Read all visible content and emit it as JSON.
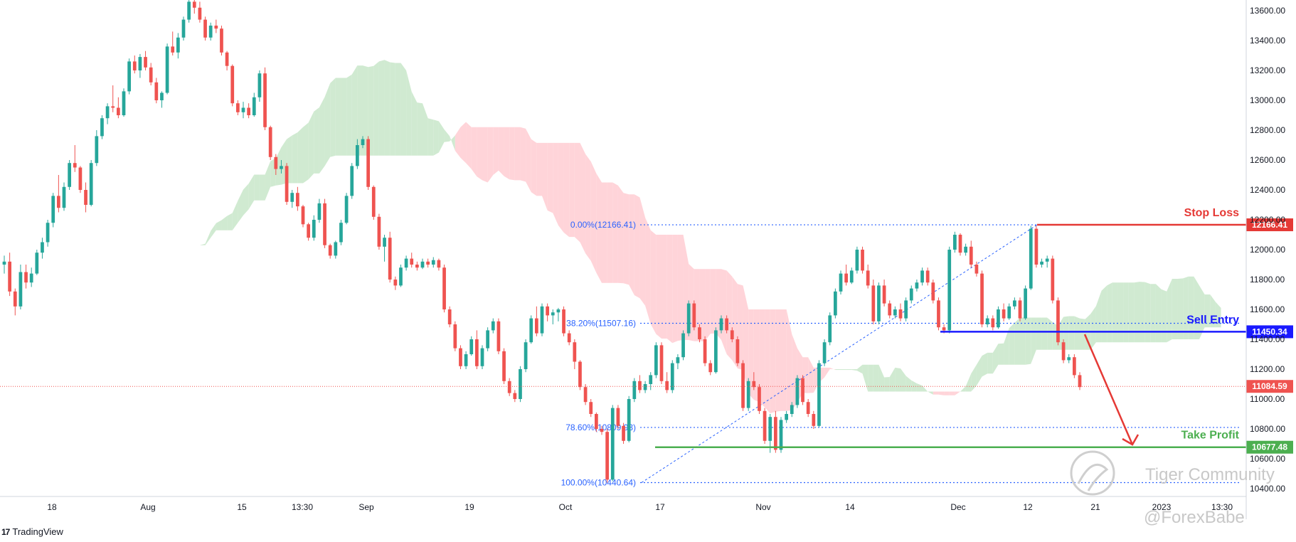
{
  "chart_data": {
    "type": "candlestick",
    "title": "",
    "y_ticks": [
      13600,
      13400,
      13200,
      13000,
      12800,
      12600,
      12400,
      12200,
      12000,
      11800,
      11600,
      11400,
      11200,
      11000,
      10800,
      10600,
      10400
    ],
    "ylim": [
      10300,
      13700
    ],
    "x_ticks": [
      "18",
      "Aug",
      "15",
      "13:30",
      "Sep",
      "19",
      "Oct",
      "17",
      "Nov",
      "14",
      "Dec",
      "12",
      "21",
      "2023",
      "13:30"
    ],
    "current_price": "11084.59",
    "levels": [
      {
        "name": "Stop Loss",
        "value": "12166.41",
        "color": "#e53935"
      },
      {
        "name": "Sell Entry",
        "value": "11450.34",
        "color": "#1a1aff"
      },
      {
        "name": "Take Profit",
        "value": "10677.48",
        "color": "#4caf50"
      }
    ],
    "fibonacci": [
      {
        "label": "0.00%(12166.41)",
        "value": 12166.41
      },
      {
        "label": "38.20%(11507.16)",
        "value": 11507.16
      },
      {
        "label": "78.60%(10809.93)",
        "value": 10809.93
      },
      {
        "label": "100.00%(10440.64)",
        "value": 10440.64
      }
    ],
    "colors": {
      "up": "#26a69a",
      "down": "#ef5350",
      "cloud_bull": "#c8e6c9",
      "cloud_bear": "#ffcdd2"
    },
    "ohlc": [
      [
        11900,
        11960,
        11840,
        11920
      ],
      [
        11920,
        11980,
        11690,
        11720
      ],
      [
        11720,
        11740,
        11560,
        11620
      ],
      [
        11620,
        11900,
        11600,
        11850
      ],
      [
        11850,
        11900,
        11740,
        11780
      ],
      [
        11780,
        11880,
        11750,
        11840
      ],
      [
        11840,
        12000,
        11830,
        11980
      ],
      [
        11980,
        12080,
        11940,
        12050
      ],
      [
        12050,
        12200,
        12020,
        12180
      ],
      [
        12180,
        12380,
        12150,
        12360
      ],
      [
        12360,
        12500,
        12250,
        12280
      ],
      [
        12280,
        12450,
        12260,
        12420
      ],
      [
        12420,
        12600,
        12400,
        12580
      ],
      [
        12580,
        12700,
        12520,
        12550
      ],
      [
        12550,
        12560,
        12380,
        12400
      ],
      [
        12400,
        12450,
        12250,
        12300
      ],
      [
        12300,
        12600,
        12290,
        12580
      ],
      [
        12580,
        12800,
        12560,
        12760
      ],
      [
        12760,
        12900,
        12740,
        12880
      ],
      [
        12880,
        12980,
        12840,
        12960
      ],
      [
        12960,
        13100,
        12920,
        12950
      ],
      [
        12950,
        13020,
        12880,
        12900
      ],
      [
        12900,
        13080,
        12890,
        13060
      ],
      [
        13060,
        13280,
        13040,
        13260
      ],
      [
        13260,
        13300,
        13180,
        13200
      ],
      [
        13200,
        13310,
        13150,
        13290
      ],
      [
        13290,
        13330,
        13200,
        13220
      ],
      [
        13220,
        13250,
        13100,
        13120
      ],
      [
        13120,
        13150,
        12980,
        13000
      ],
      [
        13000,
        13060,
        12950,
        13050
      ],
      [
        13050,
        13380,
        13040,
        13360
      ],
      [
        13360,
        13460,
        13300,
        13320
      ],
      [
        13320,
        13450,
        13280,
        13420
      ],
      [
        13420,
        13560,
        13400,
        13540
      ],
      [
        13540,
        13680,
        13520,
        13660
      ],
      [
        13660,
        13700,
        13580,
        13620
      ],
      [
        13620,
        13660,
        13520,
        13540
      ],
      [
        13540,
        13560,
        13400,
        13420
      ],
      [
        13420,
        13520,
        13400,
        13500
      ],
      [
        13500,
        13540,
        13450,
        13480
      ],
      [
        13480,
        13500,
        13300,
        13320
      ],
      [
        13320,
        13330,
        13200,
        13230
      ],
      [
        13230,
        13240,
        12960,
        12980
      ],
      [
        12980,
        13000,
        12900,
        12920
      ],
      [
        12920,
        12990,
        12880,
        12950
      ],
      [
        12950,
        12980,
        12880,
        12900
      ],
      [
        12900,
        13050,
        12890,
        13020
      ],
      [
        13020,
        13200,
        12990,
        13180
      ],
      [
        13180,
        13220,
        12800,
        12820
      ],
      [
        12820,
        12830,
        12600,
        12620
      ],
      [
        12620,
        12640,
        12500,
        12540
      ],
      [
        12540,
        12600,
        12510,
        12560
      ],
      [
        12560,
        12580,
        12300,
        12320
      ],
      [
        12320,
        12400,
        12280,
        12380
      ],
      [
        12380,
        12420,
        12260,
        12290
      ],
      [
        12290,
        12300,
        12150,
        12170
      ],
      [
        12170,
        12180,
        12060,
        12080
      ],
      [
        12080,
        12230,
        12060,
        12200
      ],
      [
        12200,
        12340,
        12180,
        12310
      ],
      [
        12310,
        12340,
        12010,
        12030
      ],
      [
        12030,
        12040,
        11940,
        11960
      ],
      [
        11960,
        12060,
        11940,
        12050
      ],
      [
        12050,
        12200,
        12030,
        12180
      ],
      [
        12180,
        12380,
        12170,
        12360
      ],
      [
        12360,
        12580,
        12340,
        12560
      ],
      [
        12560,
        12740,
        12540,
        12700
      ],
      [
        12700,
        12760,
        12680,
        12740
      ],
      [
        12740,
        12760,
        12400,
        12420
      ],
      [
        12420,
        12430,
        12200,
        12220
      ],
      [
        12220,
        12240,
        12000,
        12020
      ],
      [
        12020,
        12100,
        11920,
        12080
      ],
      [
        12080,
        12120,
        11780,
        11800
      ],
      [
        11800,
        11820,
        11730,
        11760
      ],
      [
        11760,
        11900,
        11750,
        11880
      ],
      [
        11880,
        11960,
        11860,
        11940
      ],
      [
        11940,
        11980,
        11880,
        11900
      ],
      [
        11900,
        11920,
        11860,
        11880
      ],
      [
        11880,
        11940,
        11870,
        11920
      ],
      [
        11920,
        11940,
        11880,
        11900
      ],
      [
        11900,
        11950,
        11880,
        11930
      ],
      [
        11930,
        11940,
        11860,
        11880
      ],
      [
        11880,
        11900,
        11580,
        11600
      ],
      [
        11600,
        11620,
        11480,
        11500
      ],
      [
        11500,
        11520,
        11320,
        11340
      ],
      [
        11340,
        11360,
        11200,
        11220
      ],
      [
        11220,
        11320,
        11200,
        11300
      ],
      [
        11300,
        11420,
        11290,
        11400
      ],
      [
        11400,
        11460,
        11200,
        11220
      ],
      [
        11220,
        11360,
        11200,
        11340
      ],
      [
        11340,
        11480,
        11320,
        11460
      ],
      [
        11460,
        11540,
        11440,
        11520
      ],
      [
        11520,
        11540,
        11300,
        11320
      ],
      [
        11320,
        11340,
        11100,
        11120
      ],
      [
        11120,
        11140,
        11020,
        11040
      ],
      [
        11040,
        11060,
        10980,
        11000
      ],
      [
        11000,
        11220,
        10980,
        11200
      ],
      [
        11200,
        11400,
        11180,
        11380
      ],
      [
        11380,
        11560,
        11370,
        11540
      ],
      [
        11540,
        11620,
        11420,
        11440
      ],
      [
        11440,
        11640,
        11420,
        11620
      ],
      [
        11620,
        11640,
        11520,
        11560
      ],
      [
        11560,
        11600,
        11500,
        11580
      ],
      [
        11580,
        11610,
        11520,
        11600
      ],
      [
        11600,
        11620,
        11420,
        11440
      ],
      [
        11440,
        11460,
        11360,
        11380
      ],
      [
        11380,
        11400,
        11200,
        11250
      ],
      [
        11250,
        11260,
        11060,
        11080
      ],
      [
        11080,
        11100,
        10960,
        10980
      ],
      [
        10980,
        11000,
        10880,
        10900
      ],
      [
        10900,
        10910,
        10780,
        10800
      ],
      [
        10800,
        10820,
        10760,
        10780
      ],
      [
        10780,
        10800,
        10440,
        10460
      ],
      [
        10460,
        10960,
        10450,
        10940
      ],
      [
        10940,
        10960,
        10800,
        10820
      ],
      [
        10820,
        10840,
        10700,
        10720
      ],
      [
        10720,
        11020,
        10710,
        11000
      ],
      [
        11000,
        11140,
        10980,
        11120
      ],
      [
        11120,
        11160,
        11040,
        11060
      ],
      [
        11060,
        11120,
        11040,
        11100
      ],
      [
        11100,
        11180,
        11060,
        11160
      ],
      [
        11160,
        11380,
        11140,
        11360
      ],
      [
        11360,
        11380,
        11100,
        11120
      ],
      [
        11120,
        11180,
        11040,
        11060
      ],
      [
        11060,
        11260,
        11040,
        11240
      ],
      [
        11240,
        11300,
        11200,
        11280
      ],
      [
        11280,
        11460,
        11260,
        11440
      ],
      [
        11440,
        11660,
        11420,
        11640
      ],
      [
        11640,
        11660,
        11460,
        11480
      ],
      [
        11480,
        11500,
        11380,
        11400
      ],
      [
        11400,
        11420,
        11220,
        11240
      ],
      [
        11240,
        11260,
        11160,
        11180
      ],
      [
        11180,
        11480,
        11170,
        11460
      ],
      [
        11460,
        11560,
        11440,
        11540
      ],
      [
        11540,
        11560,
        11440,
        11460
      ],
      [
        11460,
        11480,
        11380,
        11400
      ],
      [
        11400,
        11420,
        11220,
        11240
      ],
      [
        11240,
        11260,
        10920,
        10940
      ],
      [
        10940,
        11140,
        10920,
        11120
      ],
      [
        11120,
        11180,
        11060,
        11080
      ],
      [
        11080,
        11100,
        10900,
        10920
      ],
      [
        10920,
        10940,
        10700,
        10720
      ],
      [
        10720,
        10900,
        10640,
        10880
      ],
      [
        10880,
        10920,
        10640,
        10660
      ],
      [
        10660,
        10880,
        10640,
        10860
      ],
      [
        10860,
        10920,
        10840,
        10900
      ],
      [
        10900,
        10980,
        10880,
        10960
      ],
      [
        10960,
        11160,
        10940,
        11140
      ],
      [
        11140,
        11160,
        10960,
        10980
      ],
      [
        10980,
        11000,
        10880,
        10900
      ],
      [
        10900,
        10920,
        10800,
        10820
      ],
      [
        10820,
        11260,
        10810,
        11240
      ],
      [
        11240,
        11400,
        11220,
        11380
      ],
      [
        11380,
        11580,
        11360,
        11560
      ],
      [
        11560,
        11740,
        11540,
        11720
      ],
      [
        11720,
        11860,
        11700,
        11840
      ],
      [
        11840,
        11900,
        11760,
        11780
      ],
      [
        11780,
        11880,
        11770,
        11860
      ],
      [
        11860,
        12020,
        11840,
        12000
      ],
      [
        12000,
        12020,
        11840,
        11860
      ],
      [
        11860,
        11900,
        11740,
        11760
      ],
      [
        11760,
        11800,
        11500,
        11520
      ],
      [
        11520,
        11780,
        11500,
        11760
      ],
      [
        11760,
        11800,
        11620,
        11640
      ],
      [
        11640,
        11660,
        11540,
        11560
      ],
      [
        11560,
        11620,
        11540,
        11600
      ],
      [
        11600,
        11640,
        11520,
        11540
      ],
      [
        11540,
        11680,
        11520,
        11660
      ],
      [
        11660,
        11760,
        11640,
        11740
      ],
      [
        11740,
        11800,
        11720,
        11780
      ],
      [
        11780,
        11880,
        11760,
        11860
      ],
      [
        11860,
        11880,
        11760,
        11780
      ],
      [
        11780,
        11800,
        11640,
        11660
      ],
      [
        11660,
        11680,
        11460,
        11480
      ],
      [
        11480,
        11500,
        11440,
        11460
      ],
      [
        11460,
        12020,
        11440,
        12000
      ],
      [
        12000,
        12120,
        11980,
        12100
      ],
      [
        12100,
        12110,
        11960,
        11980
      ],
      [
        11980,
        12040,
        11960,
        12020
      ],
      [
        12020,
        12060,
        11880,
        11900
      ],
      [
        11900,
        11920,
        11820,
        11840
      ],
      [
        11840,
        11860,
        11480,
        11500
      ],
      [
        11500,
        11560,
        11480,
        11540
      ],
      [
        11540,
        11560,
        11460,
        11480
      ],
      [
        11480,
        11620,
        11470,
        11600
      ],
      [
        11600,
        11640,
        11520,
        11540
      ],
      [
        11540,
        11640,
        11530,
        11620
      ],
      [
        11620,
        11680,
        11600,
        11660
      ],
      [
        11660,
        11680,
        11520,
        11540
      ],
      [
        11540,
        11760,
        11530,
        11740
      ],
      [
        11740,
        12160,
        11730,
        12140
      ],
      [
        12140,
        12160,
        11880,
        11900
      ],
      [
        11900,
        11940,
        11880,
        11920
      ],
      [
        11920,
        11960,
        11880,
        11940
      ],
      [
        11940,
        11960,
        11640,
        11660
      ],
      [
        11660,
        11680,
        11360,
        11380
      ],
      [
        11380,
        11400,
        11240,
        11260
      ],
      [
        11260,
        11300,
        11240,
        11280
      ],
      [
        11280,
        11300,
        11140,
        11160
      ],
      [
        11160,
        11180,
        11060,
        11080
      ]
    ]
  },
  "watermark": {
    "name": "Tiger Community",
    "handle": "@ForexBabe"
  },
  "branding": {
    "tradingview": "TradingView"
  }
}
